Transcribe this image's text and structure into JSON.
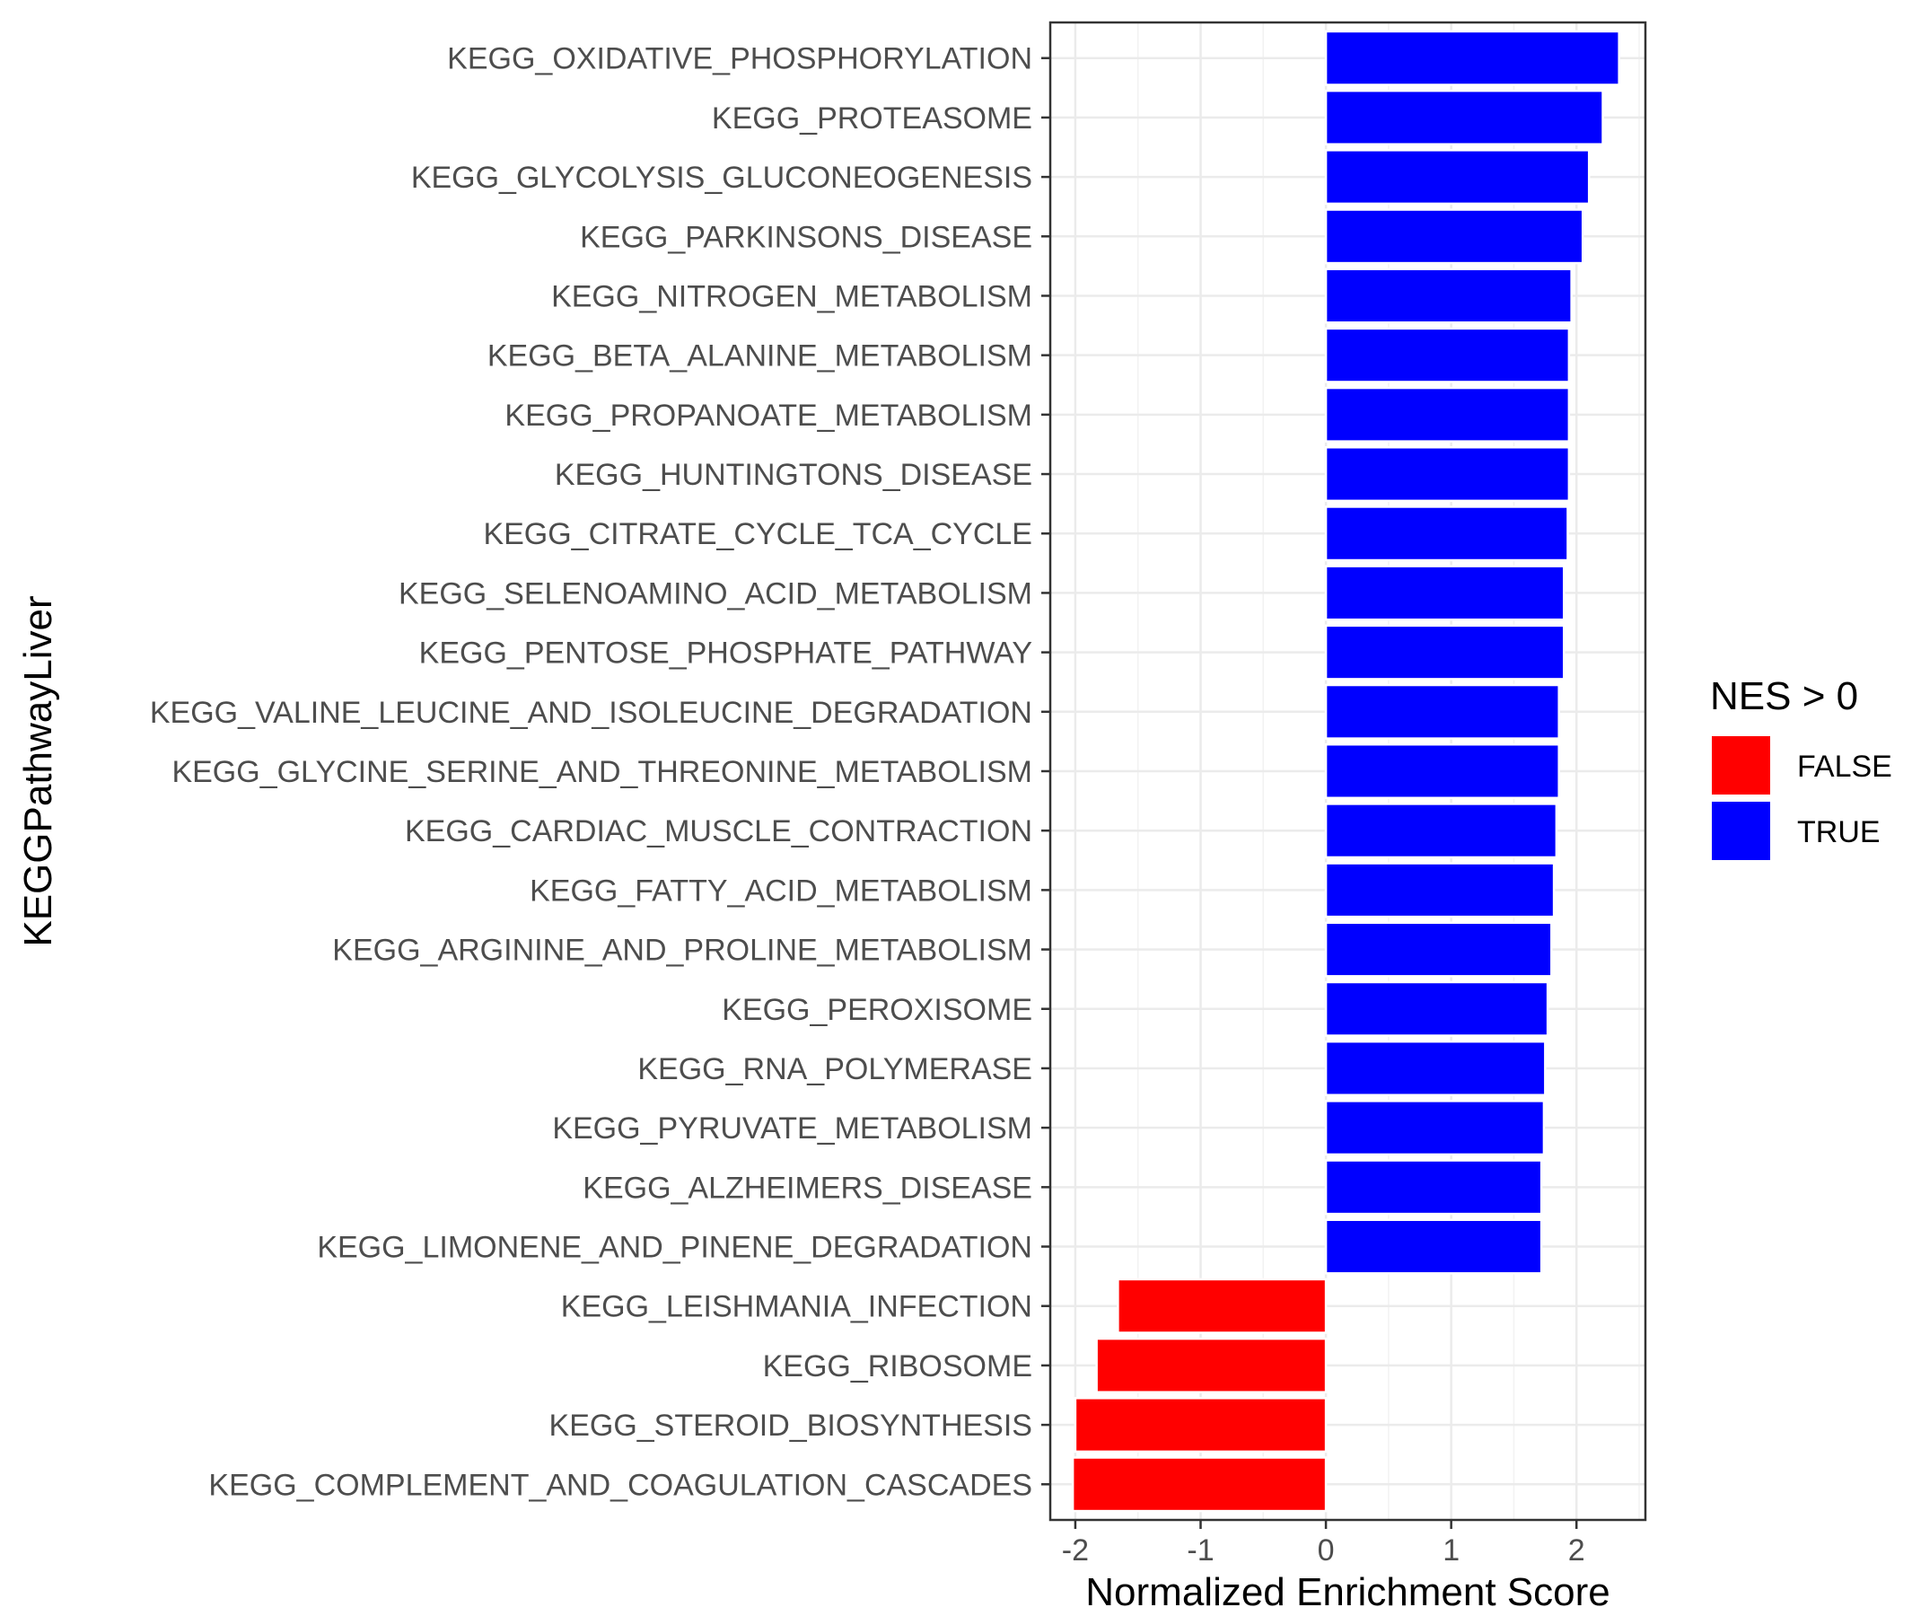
{
  "chart_data": {
    "type": "bar",
    "orientation": "horizontal",
    "xlabel": "Normalized Enrichment Score",
    "ylabel": "KEGGPathwayLiver",
    "xlim": [
      -2.2,
      2.55
    ],
    "x_ticks": [
      "-2",
      "-1",
      "0",
      "1",
      "2"
    ],
    "x_tick_values": [
      -2,
      -1,
      0,
      1,
      2
    ],
    "grid": true,
    "legend": {
      "title": "NES > 0",
      "position": "right",
      "entries": [
        {
          "label": "FALSE",
          "color": "#ff0000"
        },
        {
          "label": "TRUE",
          "color": "#0000ff"
        }
      ]
    },
    "colors": {
      "FALSE": "#ff0000",
      "TRUE": "#0000ff"
    },
    "categories": [
      "KEGG_OXIDATIVE_PHOSPHORYLATION",
      "KEGG_PROTEASOME",
      "KEGG_GLYCOLYSIS_GLUCONEOGENESIS",
      "KEGG_PARKINSONS_DISEASE",
      "KEGG_NITROGEN_METABOLISM",
      "KEGG_BETA_ALANINE_METABOLISM",
      "KEGG_PROPANOATE_METABOLISM",
      "KEGG_HUNTINGTONS_DISEASE",
      "KEGG_CITRATE_CYCLE_TCA_CYCLE",
      "KEGG_SELENOAMINO_ACID_METABOLISM",
      "KEGG_PENTOSE_PHOSPHATE_PATHWAY",
      "KEGG_VALINE_LEUCINE_AND_ISOLEUCINE_DEGRADATION",
      "KEGG_GLYCINE_SERINE_AND_THREONINE_METABOLISM",
      "KEGG_CARDIAC_MUSCLE_CONTRACTION",
      "KEGG_FATTY_ACID_METABOLISM",
      "KEGG_ARGININE_AND_PROLINE_METABOLISM",
      "KEGG_PEROXISOME",
      "KEGG_RNA_POLYMERASE",
      "KEGG_PYRUVATE_METABOLISM",
      "KEGG_ALZHEIMERS_DISEASE",
      "KEGG_LIMONENE_AND_PINENE_DEGRADATION",
      "KEGG_LEISHMANIA_INFECTION",
      "KEGG_RIBOSOME",
      "KEGG_STEROID_BIOSYNTHESIS",
      "KEGG_COMPLEMENT_AND_COAGULATION_CASCADES"
    ],
    "values": [
      2.34,
      2.21,
      2.1,
      2.05,
      1.96,
      1.94,
      1.94,
      1.94,
      1.93,
      1.9,
      1.9,
      1.86,
      1.86,
      1.84,
      1.82,
      1.8,
      1.77,
      1.75,
      1.74,
      1.72,
      1.72,
      -1.66,
      -1.83,
      -2.0,
      -2.02
    ],
    "groups": [
      "TRUE",
      "TRUE",
      "TRUE",
      "TRUE",
      "TRUE",
      "TRUE",
      "TRUE",
      "TRUE",
      "TRUE",
      "TRUE",
      "TRUE",
      "TRUE",
      "TRUE",
      "TRUE",
      "TRUE",
      "TRUE",
      "TRUE",
      "TRUE",
      "TRUE",
      "TRUE",
      "TRUE",
      "FALSE",
      "FALSE",
      "FALSE",
      "FALSE"
    ]
  }
}
